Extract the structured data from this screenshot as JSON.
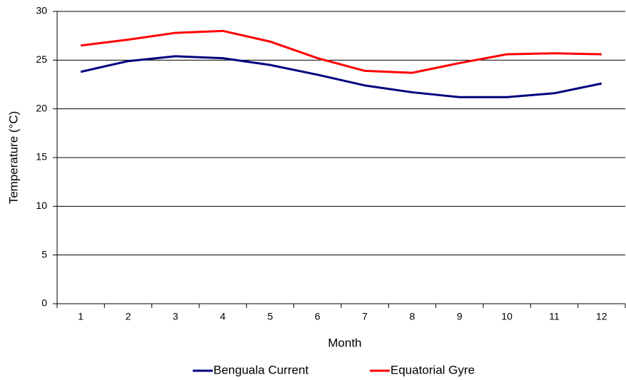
{
  "chart_data": {
    "type": "line",
    "x_label": "Month",
    "y_label": "Temperature (°C)",
    "categories": [
      "1",
      "2",
      "3",
      "4",
      "5",
      "6",
      "7",
      "8",
      "9",
      "10",
      "11",
      "12"
    ],
    "series": [
      {
        "name": "Benguala Current",
        "color": "#000080",
        "values": [
          23.8,
          24.9,
          25.4,
          25.2,
          24.5,
          23.5,
          22.4,
          21.7,
          21.2,
          21.2,
          21.6,
          22.6
        ]
      },
      {
        "name": "Equatorial Gyre",
        "color": "#ff0000",
        "values": [
          26.5,
          27.1,
          27.8,
          28.0,
          26.9,
          25.2,
          23.9,
          23.7,
          24.7,
          25.6,
          25.7,
          25.6
        ]
      }
    ],
    "ylim": [
      0,
      30
    ],
    "yticks": [
      0,
      5,
      10,
      15,
      20,
      25,
      30
    ],
    "grid": true,
    "legend": "bottom"
  }
}
